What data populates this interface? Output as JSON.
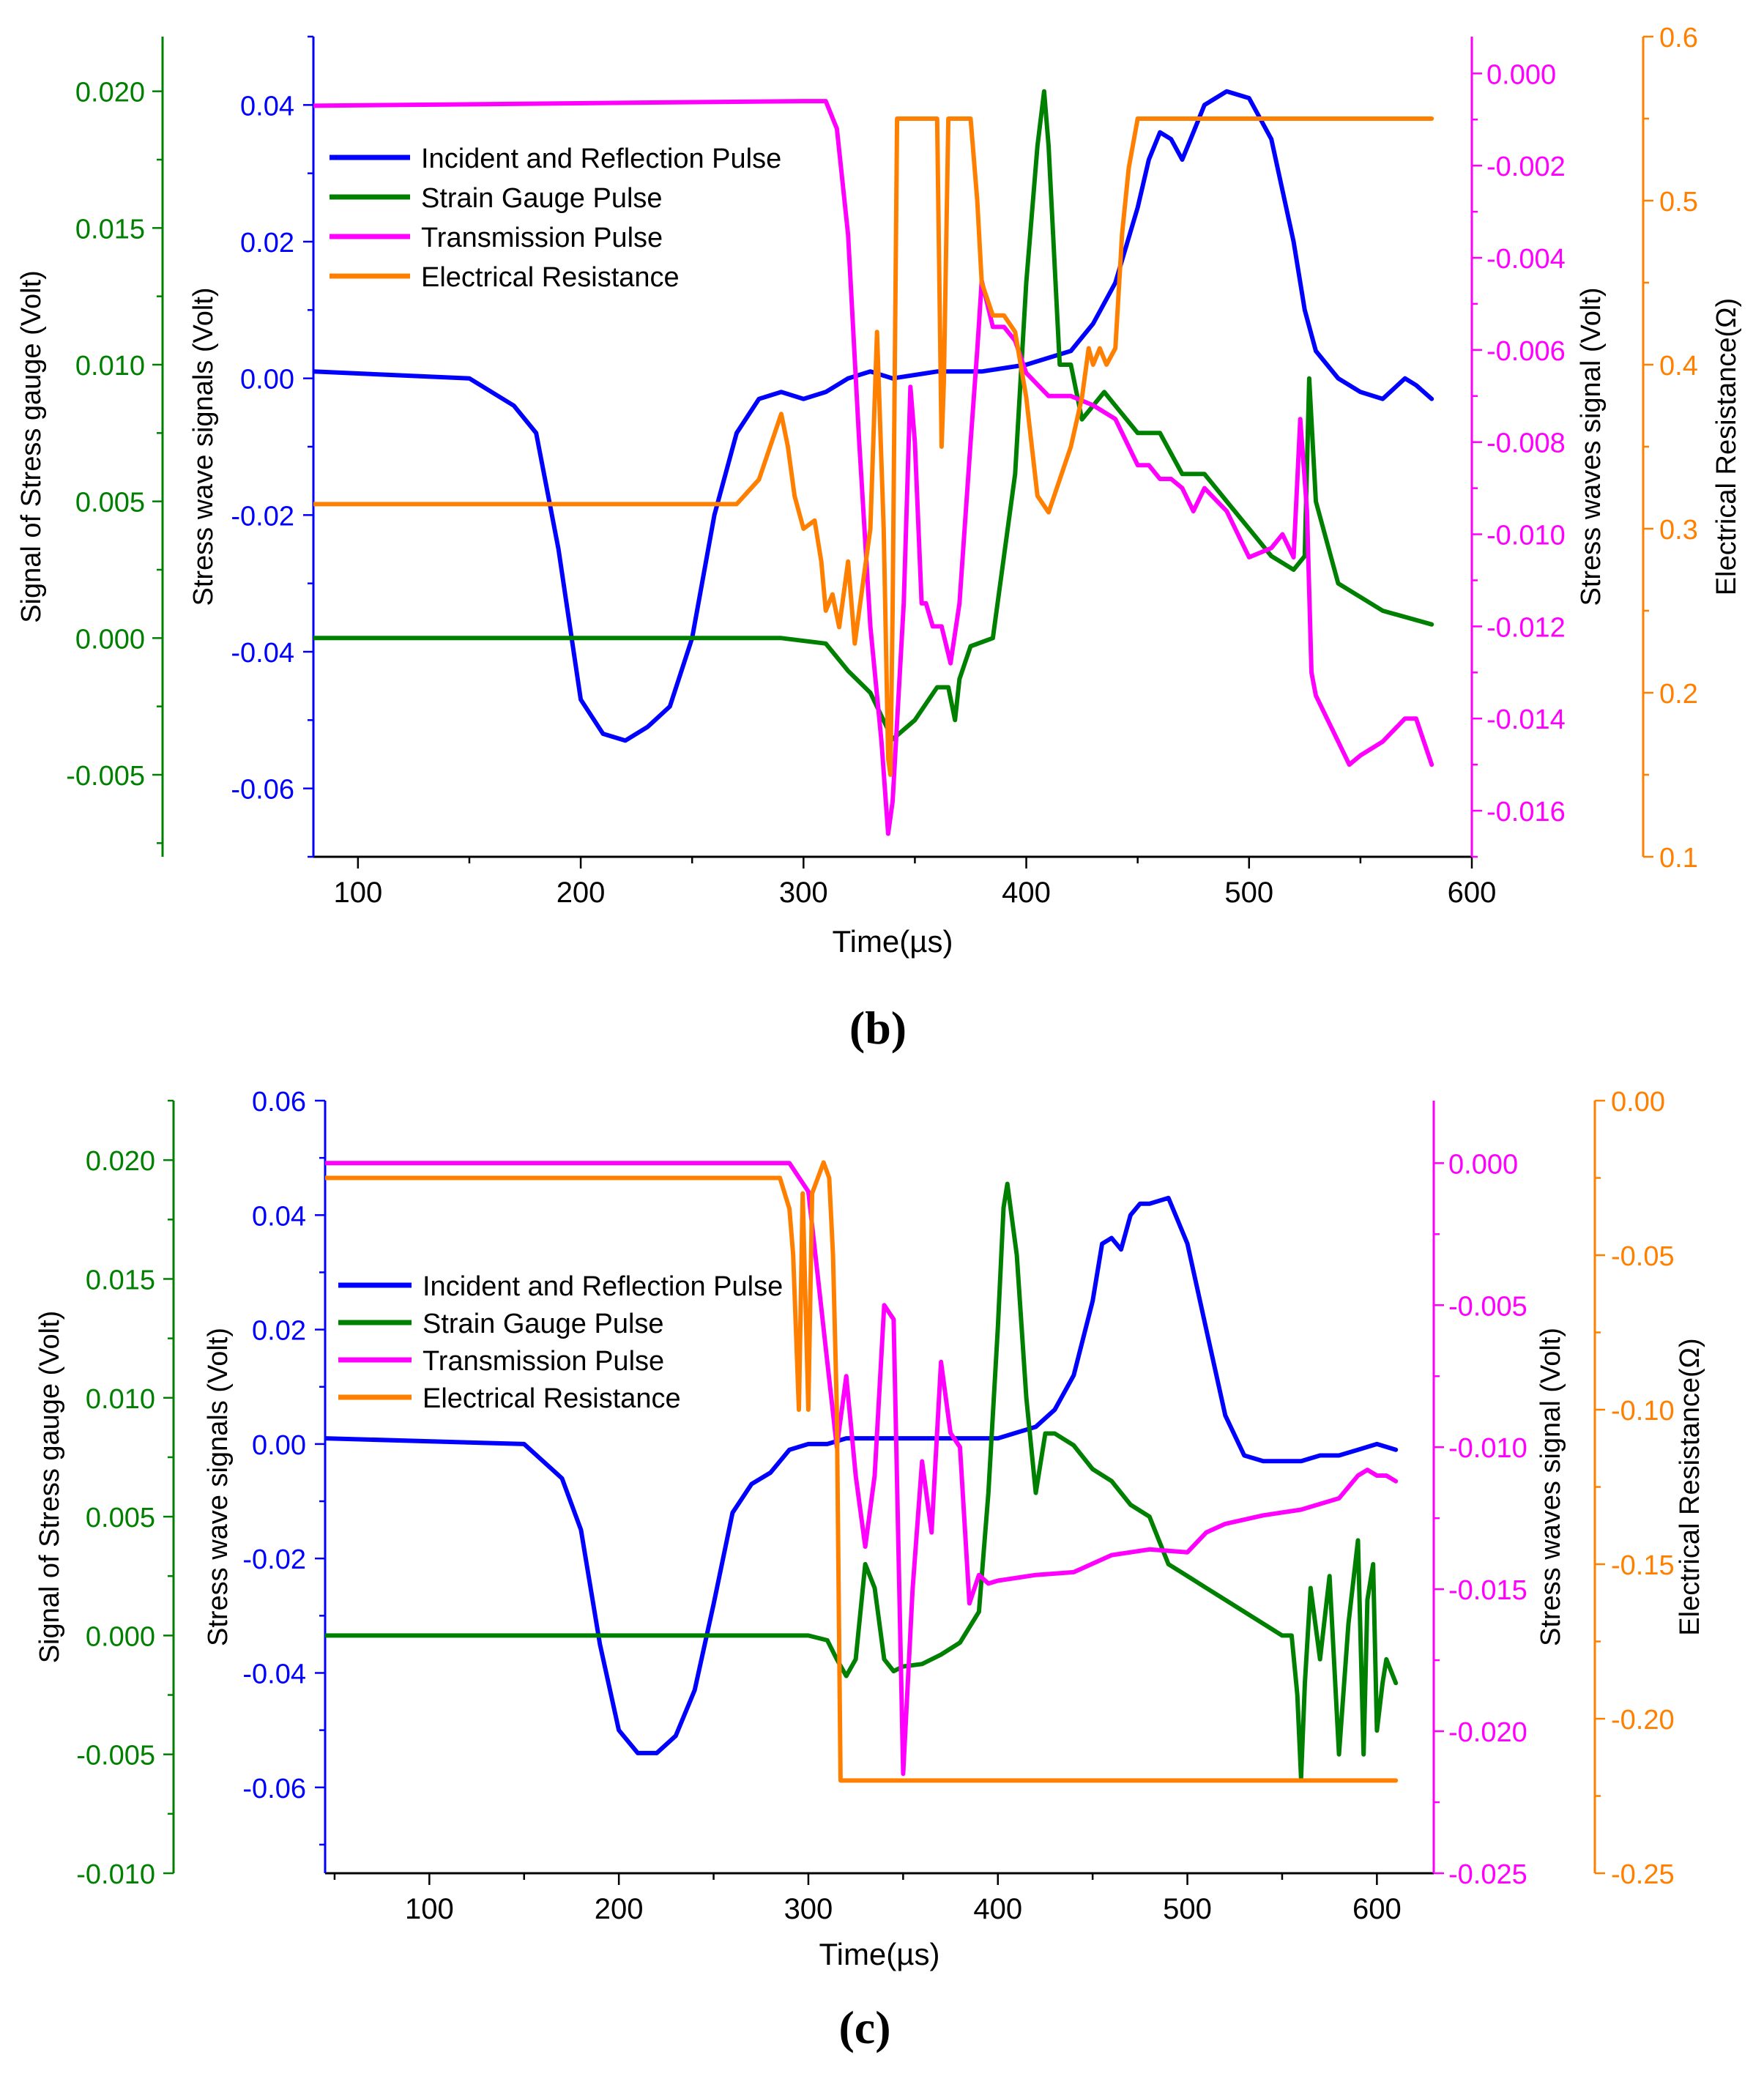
{
  "colors": {
    "blue": "#0000ff",
    "green": "#008000",
    "magenta": "#ff00ff",
    "orange": "#ff8000",
    "black": "#000000"
  },
  "chart_data": [
    {
      "type": "line",
      "panel_label": "(b)",
      "xlabel": "Time(µs)",
      "xlim": [
        80,
        600
      ],
      "xticks": [
        100,
        200,
        300,
        400,
        500,
        600
      ],
      "grid": false,
      "legend_position": "top-left",
      "axes": {
        "green": {
          "label": "Signal of Stress gauge (Volt)",
          "lim": [
            -0.008,
            0.022
          ],
          "ticks": [
            "-0.005",
            "0.000",
            "0.005",
            "0.010",
            "0.015",
            "0.020"
          ]
        },
        "blue": {
          "label": "Stress wave signals (Volt)",
          "lim": [
            -0.07,
            0.05
          ],
          "ticks": [
            "-0.06",
            "-0.04",
            "-0.02",
            "0.00",
            "0.02",
            "0.04"
          ]
        },
        "magenta": {
          "label": "Stress waves signal (Volt)",
          "lim": [
            -0.017,
            0.0008
          ],
          "ticks": [
            "0.000",
            "-0.002",
            "-0.004",
            "-0.006",
            "-0.008",
            "-0.010",
            "-0.012",
            "-0.014",
            "-0.016"
          ]
        },
        "orange": {
          "label": "Electrical Resistance(Ω)",
          "lim": [
            0.1,
            0.6
          ],
          "ticks": [
            "0.1",
            "0.2",
            "0.3",
            "0.4",
            "0.5",
            "0.6"
          ]
        }
      },
      "series": [
        {
          "name": "Incident and Reflection Pulse",
          "axis": "blue",
          "color": "#0000ff",
          "x": [
            80,
            150,
            170,
            180,
            190,
            200,
            210,
            220,
            230,
            240,
            250,
            260,
            270,
            280,
            290,
            300,
            310,
            320,
            330,
            340,
            360,
            380,
            400,
            420,
            430,
            440,
            450,
            455,
            460,
            465,
            470,
            475,
            480,
            490,
            500,
            510,
            520,
            525,
            530,
            540,
            550,
            560,
            570,
            575,
            582
          ],
          "y": [
            0.001,
            0.0,
            -0.004,
            -0.008,
            -0.025,
            -0.047,
            -0.052,
            -0.053,
            -0.051,
            -0.048,
            -0.038,
            -0.02,
            -0.008,
            -0.003,
            -0.002,
            -0.003,
            -0.002,
            0.0,
            0.001,
            0.0,
            0.001,
            0.001,
            0.002,
            0.004,
            0.008,
            0.014,
            0.025,
            0.032,
            0.036,
            0.035,
            0.032,
            0.036,
            0.04,
            0.042,
            0.041,
            0.035,
            0.02,
            0.01,
            0.004,
            0.0,
            -0.002,
            -0.003,
            0.0,
            -0.001,
            -0.003
          ]
        },
        {
          "name": "Strain Gauge Pulse",
          "axis": "green",
          "color": "#008000",
          "x": [
            80,
            200,
            290,
            310,
            320,
            330,
            340,
            350,
            360,
            365,
            368,
            370,
            375,
            385,
            395,
            400,
            405,
            408,
            410,
            415,
            420,
            425,
            430,
            435,
            440,
            450,
            460,
            470,
            480,
            490,
            500,
            510,
            520,
            525,
            527,
            530,
            540,
            560,
            582
          ],
          "y": [
            0.0,
            0.0,
            0.0,
            -0.0002,
            -0.0012,
            -0.002,
            -0.0037,
            -0.003,
            -0.0018,
            -0.0018,
            -0.003,
            -0.0015,
            -0.0003,
            0.0,
            0.006,
            0.013,
            0.018,
            0.02,
            0.018,
            0.01,
            0.01,
            0.008,
            0.0085,
            0.009,
            0.0085,
            0.0075,
            0.0075,
            0.006,
            0.006,
            0.005,
            0.004,
            0.003,
            0.0025,
            0.003,
            0.0095,
            0.005,
            0.002,
            0.001,
            0.0005
          ]
        },
        {
          "name": "Transmission Pulse",
          "axis": "magenta",
          "color": "#ff00ff",
          "x": [
            80,
            300,
            310,
            315,
            320,
            325,
            330,
            335,
            338,
            340,
            345,
            348,
            350,
            353,
            355,
            358,
            362,
            366,
            370,
            375,
            378,
            380,
            385,
            390,
            395,
            400,
            410,
            420,
            430,
            440,
            450,
            455,
            460,
            465,
            470,
            475,
            480,
            490,
            500,
            510,
            515,
            520,
            523,
            526,
            528,
            530,
            540,
            545,
            550,
            560,
            570,
            575,
            582
          ],
          "y": [
            -0.0007,
            -0.0006,
            -0.0006,
            -0.0012,
            -0.0035,
            -0.008,
            -0.012,
            -0.0145,
            -0.0165,
            -0.0158,
            -0.0115,
            -0.0068,
            -0.008,
            -0.0115,
            -0.0115,
            -0.012,
            -0.012,
            -0.0128,
            -0.0115,
            -0.008,
            -0.006,
            -0.0045,
            -0.0055,
            -0.0055,
            -0.0058,
            -0.0065,
            -0.007,
            -0.007,
            -0.0072,
            -0.0075,
            -0.0085,
            -0.0085,
            -0.0088,
            -0.0088,
            -0.009,
            -0.0095,
            -0.009,
            -0.0095,
            -0.0105,
            -0.0103,
            -0.01,
            -0.0105,
            -0.0075,
            -0.0095,
            -0.013,
            -0.0135,
            -0.0145,
            -0.015,
            -0.0148,
            -0.0145,
            -0.014,
            -0.014,
            -0.015
          ]
        },
        {
          "name": "Electrical Resistance",
          "axis": "orange",
          "color": "#ff8000",
          "x": [
            80,
            260,
            270,
            280,
            290,
            293,
            296,
            300,
            305,
            308,
            310,
            313,
            316,
            320,
            323,
            326,
            330,
            333,
            336,
            337,
            338,
            339,
            340,
            341,
            342,
            344,
            346,
            348,
            350,
            355,
            360,
            362,
            363,
            365,
            367,
            370,
            375,
            378,
            380,
            385,
            390,
            395,
            400,
            405,
            410,
            415,
            420,
            425,
            428,
            430,
            433,
            436,
            440,
            443,
            446,
            450,
            455,
            460,
            470,
            480,
            500,
            520,
            540,
            560,
            582
          ],
          "y": [
            0.315,
            0.315,
            0.315,
            0.33,
            0.37,
            0.35,
            0.32,
            0.3,
            0.305,
            0.28,
            0.25,
            0.26,
            0.24,
            0.28,
            0.23,
            0.26,
            0.3,
            0.42,
            0.3,
            0.23,
            0.16,
            0.15,
            0.25,
            0.4,
            0.55,
            0.55,
            0.55,
            0.55,
            0.55,
            0.55,
            0.55,
            0.35,
            0.39,
            0.55,
            0.55,
            0.55,
            0.55,
            0.5,
            0.45,
            0.43,
            0.43,
            0.42,
            0.38,
            0.32,
            0.31,
            0.33,
            0.35,
            0.38,
            0.41,
            0.4,
            0.41,
            0.4,
            0.41,
            0.48,
            0.52,
            0.55,
            0.55,
            0.55,
            0.55,
            0.55,
            0.55,
            0.55,
            0.55,
            0.55,
            0.55
          ]
        }
      ]
    },
    {
      "type": "line",
      "panel_label": "(c)",
      "xlabel": "Time(µs)",
      "xlim": [
        45,
        630
      ],
      "xticks": [
        100,
        200,
        300,
        400,
        500,
        600
      ],
      "grid": false,
      "legend_position": "top-left",
      "axes": {
        "green": {
          "label": "Signal of Stress gauge (Volt)",
          "lim": [
            -0.01,
            0.0225
          ],
          "ticks": [
            "-0.010",
            "-0.005",
            "0.000",
            "0.005",
            "0.010",
            "0.015",
            "0.020"
          ]
        },
        "blue": {
          "label": "Stress wave signals (Volt)",
          "lim": [
            -0.075,
            0.06
          ],
          "ticks": [
            "-0.06",
            "-0.04",
            "-0.02",
            "0.00",
            "0.02",
            "0.04",
            "0.06"
          ]
        },
        "magenta": {
          "label": "Stress waves signal (Volt)",
          "lim": [
            -0.025,
            0.0022
          ],
          "ticks": [
            "0.000",
            "-0.005",
            "-0.010",
            "-0.015",
            "-0.020",
            "-0.025"
          ]
        },
        "orange": {
          "label": "Electrical Resistance(Ω)",
          "lim": [
            -0.25,
            0.0
          ],
          "ticks": [
            "0.00",
            "-0.05",
            "-0.10",
            "-0.15",
            "-0.20",
            "-0.25"
          ]
        }
      },
      "series": [
        {
          "name": "Incident and Reflection Pulse",
          "axis": "blue",
          "color": "#0000ff",
          "x": [
            45,
            150,
            160,
            170,
            180,
            190,
            200,
            210,
            220,
            230,
            240,
            250,
            260,
            270,
            280,
            290,
            300,
            310,
            320,
            350,
            380,
            400,
            420,
            430,
            440,
            450,
            455,
            460,
            465,
            470,
            475,
            480,
            490,
            500,
            510,
            520,
            530,
            540,
            560,
            570,
            580,
            590,
            600,
            610
          ],
          "y": [
            0.001,
            0.0,
            -0.003,
            -0.006,
            -0.015,
            -0.035,
            -0.05,
            -0.054,
            -0.054,
            -0.051,
            -0.043,
            -0.028,
            -0.012,
            -0.007,
            -0.005,
            -0.001,
            0.0,
            0.0,
            0.001,
            0.001,
            0.001,
            0.001,
            0.003,
            0.006,
            0.012,
            0.025,
            0.035,
            0.036,
            0.034,
            0.04,
            0.042,
            0.042,
            0.043,
            0.035,
            0.02,
            0.005,
            -0.002,
            -0.003,
            -0.003,
            -0.002,
            -0.002,
            -0.001,
            0.0,
            -0.001
          ]
        },
        {
          "name": "Strain Gauge Pulse",
          "axis": "green",
          "color": "#008000",
          "x": [
            45,
            200,
            300,
            310,
            315,
            320,
            325,
            330,
            335,
            340,
            345,
            350,
            360,
            370,
            380,
            390,
            395,
            400,
            403,
            405,
            410,
            415,
            420,
            425,
            430,
            440,
            450,
            460,
            470,
            480,
            490,
            500,
            510,
            520,
            530,
            540,
            550,
            555,
            558,
            560,
            562,
            565,
            570,
            575,
            580,
            585,
            590,
            593,
            595,
            598,
            600,
            603,
            605,
            610
          ],
          "y": [
            0.0,
            0.0,
            0.0,
            -0.0002,
            -0.001,
            -0.0017,
            -0.001,
            0.003,
            0.002,
            -0.001,
            -0.0015,
            -0.0013,
            -0.0012,
            -0.0008,
            -0.0003,
            0.001,
            0.006,
            0.013,
            0.018,
            0.019,
            0.016,
            0.01,
            0.006,
            0.0085,
            0.0085,
            0.008,
            0.007,
            0.0065,
            0.0055,
            0.005,
            0.003,
            0.0025,
            0.002,
            0.0015,
            0.001,
            0.0005,
            0.0,
            0.0,
            -0.0025,
            -0.006,
            -0.002,
            0.002,
            -0.001,
            0.0025,
            -0.005,
            0.0005,
            0.004,
            -0.005,
            0.0015,
            0.003,
            -0.004,
            -0.002,
            -0.001,
            -0.002
          ]
        },
        {
          "name": "Transmission Pulse",
          "axis": "magenta",
          "color": "#ff00ff",
          "x": [
            45,
            290,
            300,
            305,
            310,
            315,
            320,
            325,
            330,
            335,
            340,
            345,
            350,
            355,
            360,
            365,
            370,
            375,
            380,
            385,
            390,
            395,
            400,
            410,
            420,
            440,
            460,
            480,
            500,
            510,
            520,
            540,
            560,
            580,
            590,
            595,
            600,
            605,
            610
          ],
          "y": [
            0.0,
            0.0,
            -0.001,
            -0.004,
            -0.007,
            -0.01,
            -0.0075,
            -0.011,
            -0.0135,
            -0.011,
            -0.005,
            -0.0055,
            -0.0215,
            -0.015,
            -0.0105,
            -0.013,
            -0.007,
            -0.0095,
            -0.01,
            -0.0155,
            -0.0145,
            -0.0148,
            -0.0147,
            -0.0146,
            -0.0145,
            -0.0144,
            -0.0138,
            -0.0136,
            -0.0137,
            -0.013,
            -0.0127,
            -0.0124,
            -0.0122,
            -0.0118,
            -0.011,
            -0.0108,
            -0.011,
            -0.011,
            -0.0112
          ]
        },
        {
          "name": "Electrical Resistance",
          "axis": "orange",
          "color": "#ff8000",
          "x": [
            45,
            200,
            285,
            290,
            292,
            295,
            297,
            300,
            302,
            305,
            308,
            311,
            313,
            315,
            317,
            330,
            350,
            400,
            500,
            600,
            610
          ],
          "y": [
            -0.025,
            -0.025,
            -0.025,
            -0.035,
            -0.05,
            -0.1,
            -0.03,
            -0.1,
            -0.03,
            -0.025,
            -0.02,
            -0.025,
            -0.05,
            -0.1,
            -0.22,
            -0.22,
            -0.22,
            -0.22,
            -0.22,
            -0.22,
            -0.22
          ]
        }
      ]
    }
  ]
}
